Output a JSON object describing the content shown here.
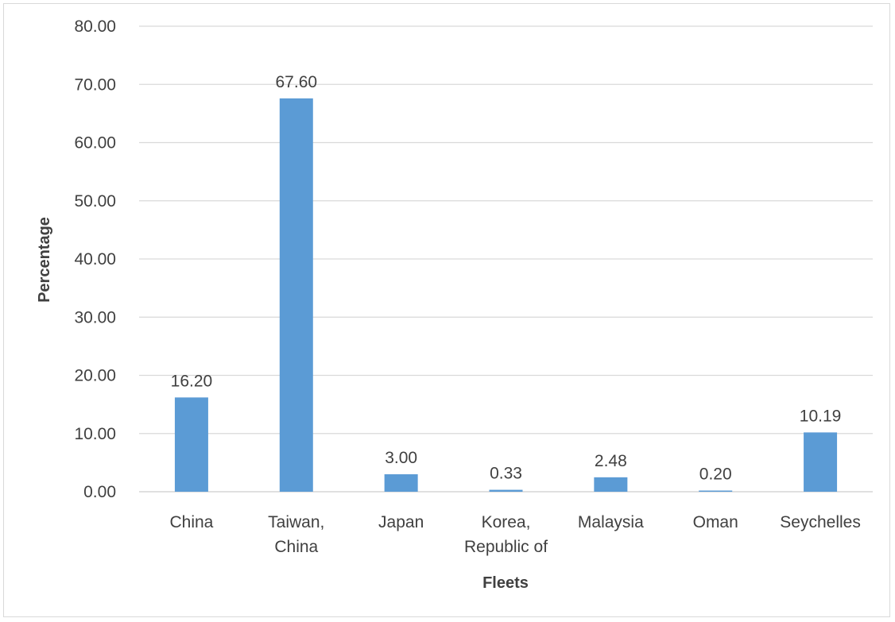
{
  "chart_data": {
    "type": "bar",
    "categories": [
      [
        "China"
      ],
      [
        "Taiwan,",
        "China"
      ],
      [
        "Japan"
      ],
      [
        "Korea,",
        "Republic of"
      ],
      [
        "Malaysia"
      ],
      [
        "Oman"
      ],
      [
        "Seychelles"
      ]
    ],
    "values": [
      16.2,
      67.6,
      3.0,
      0.33,
      2.48,
      0.2,
      10.19
    ],
    "data_labels": [
      "16.20",
      "67.60",
      "3.00",
      "0.33",
      "2.48",
      "0.20",
      "10.19"
    ],
    "xlabel": "Fleets",
    "ylabel": "Percentage",
    "ylim": [
      0,
      80
    ],
    "yticks": [
      "0.00",
      "10.00",
      "20.00",
      "30.00",
      "40.00",
      "50.00",
      "60.00",
      "70.00",
      "80.00"
    ],
    "grid": true,
    "legend": "none",
    "bar_color": "#5b9bd5",
    "grid_color": "#d9d9d9"
  }
}
